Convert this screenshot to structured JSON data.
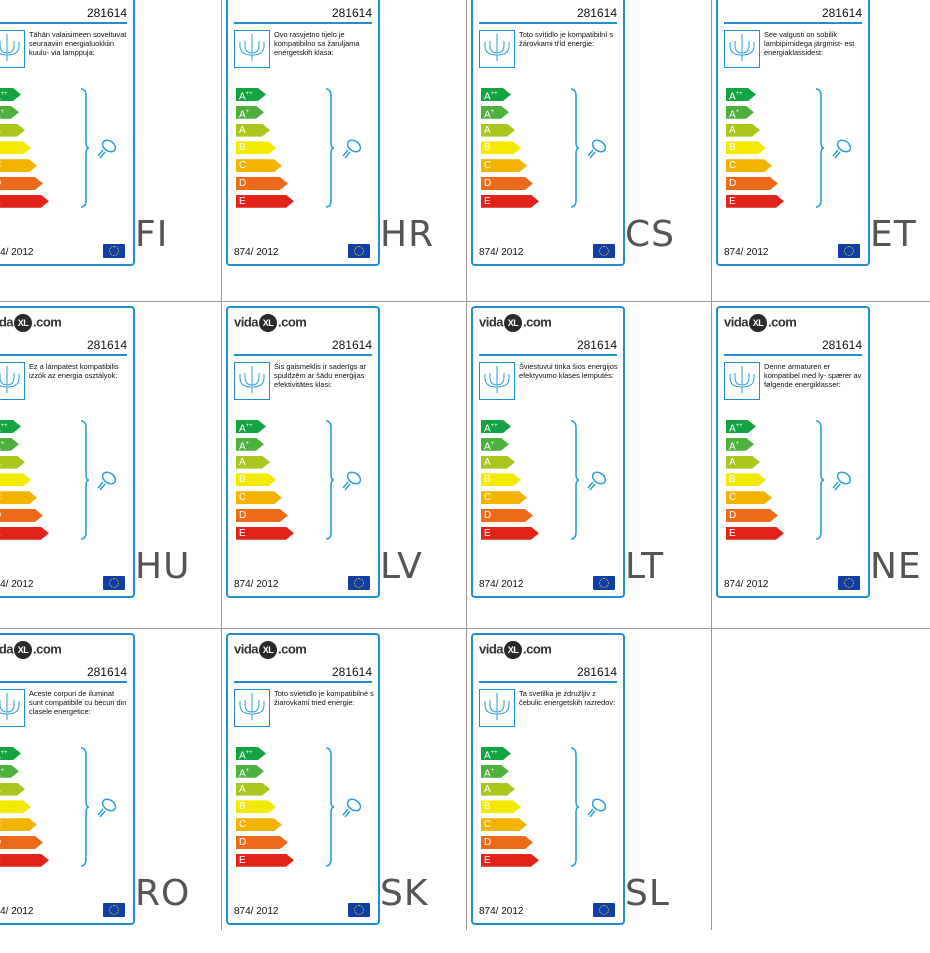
{
  "brand": "vidaXL.com",
  "product_number": "281614",
  "regulation": "874/ 2012",
  "class_labels": [
    "A++",
    "A+",
    "A",
    "B",
    "C",
    "D",
    "E"
  ],
  "class_colors": [
    "#13a340",
    "#4eb13d",
    "#a9c71c",
    "#f4ea00",
    "#f4b300",
    "#ec6b1a",
    "#e2231a"
  ],
  "class_widths": [
    30,
    28,
    34,
    40,
    46,
    52,
    58
  ],
  "labels": [
    {
      "code": "FI",
      "text": "Tähän valaisimeen soveltuvat seuraaviin energialuokkiin kuulu- via lamppuja:"
    },
    {
      "code": "HR",
      "text": "Ovo rasvjetno tijelo je kompatibilno sa žaruljama energetskih klasa:"
    },
    {
      "code": "CS",
      "text": "Toto svítidlo je kompatibilní s žárovkami tříd energie:"
    },
    {
      "code": "ET",
      "text": "See valgusti on sobilik lambipirnidega järgmist- est energiaklassidest:"
    },
    {
      "code": "HU",
      "text": "Ez a lámpatest kompatibilis izzók az energia osztályok:"
    },
    {
      "code": "LV",
      "text": "Šis gaismeklis ir saderīgs ar spuldzēm ar šādu enerģijas efektivitātes klasi:"
    },
    {
      "code": "LT",
      "text": "Šviestuvui tinka šios energijos efektyvumo klasės lemputės:"
    },
    {
      "code": "NE",
      "text": "Denne armaturen er kompatibel med ly- spærer av følgende energiklasser:"
    },
    {
      "code": "RO",
      "text": "Aceste corpuri de iluminat sunt compatibile cu becuri din clasele energetice:"
    },
    {
      "code": "SK",
      "text": "Toto svietidlo je kompatibilné s žiarovkami tried energie:"
    },
    {
      "code": "SL",
      "text": "Ta svetilka je združljiv z čebulic energetskih razredov:"
    }
  ]
}
